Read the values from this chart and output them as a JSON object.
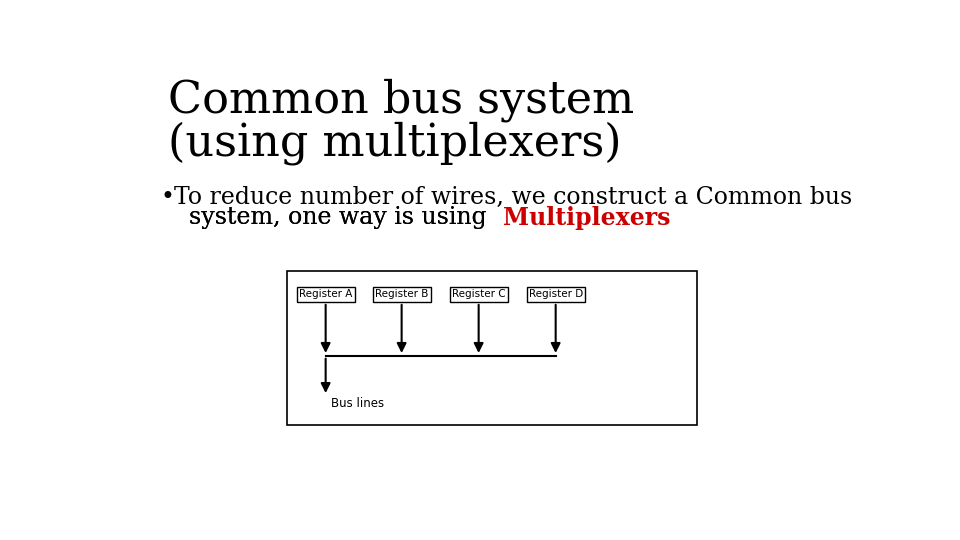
{
  "title_line1": "Common bus system",
  "title_line2": "(using multiplexers)",
  "registers": [
    "Register A",
    "Register B",
    "Register C",
    "Register D"
  ],
  "bg_color": "#ffffff",
  "text_color": "#000000",
  "red_color": "#cc0000",
  "box_color": "#000000",
  "title_fontsize": 32,
  "bullet_fontsize": 17,
  "register_fontsize": 7.5,
  "bus_label": "Bus lines",
  "bullet_line1": "To reduce number of wires, we construct a Common bus",
  "bullet_line2_prefix": "  system, one way is using ",
  "bullet_line2_red": "Multiplexers"
}
